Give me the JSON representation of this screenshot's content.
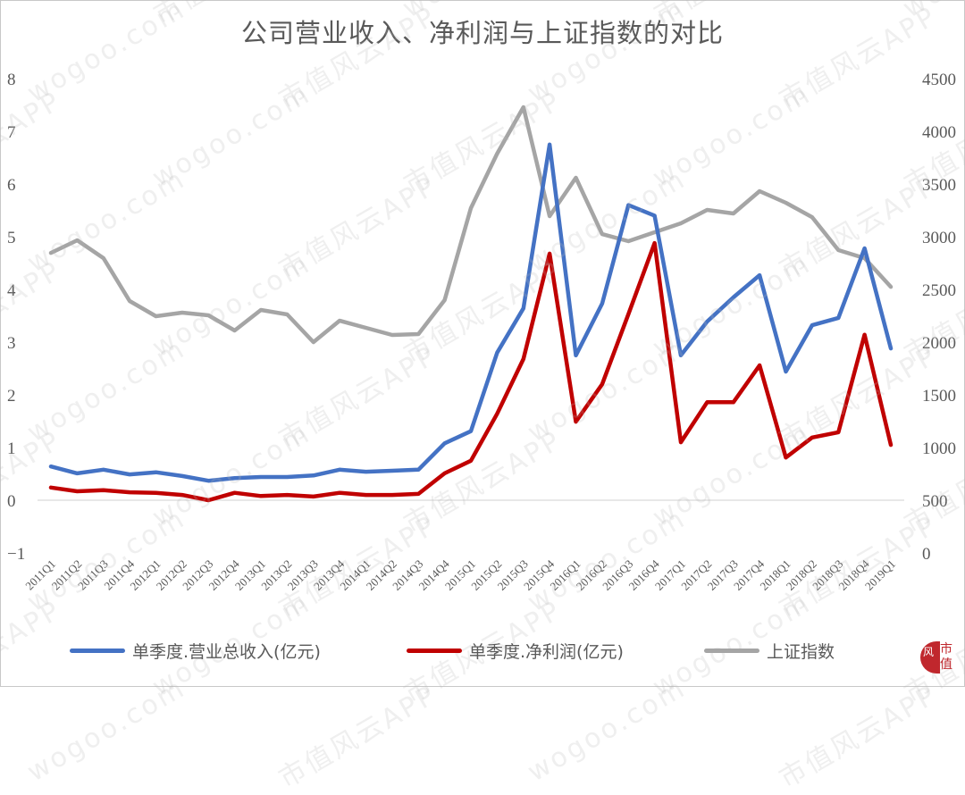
{
  "chart_data": {
    "type": "line",
    "title": "公司营业收入、净利润与上证指数的对比",
    "xlabel": "",
    "ylabel_left": "",
    "ylabel_right": "",
    "ylim_left": [
      -1,
      8
    ],
    "ylim_right": [
      0,
      4500
    ],
    "yticks_left": [
      "8",
      "7",
      "6",
      "5",
      "4",
      "3",
      "2",
      "1",
      "0",
      "-1"
    ],
    "yticks_right": [
      "4500",
      "4000",
      "3500",
      "3000",
      "2500",
      "2000",
      "1500",
      "1000",
      "500",
      "0"
    ],
    "grid": false,
    "legend_position": "bottom",
    "categories": [
      "2011Q1",
      "2011Q2",
      "2011Q3",
      "2011Q4",
      "2012Q1",
      "2012Q2",
      "2012Q3",
      "2012Q4",
      "2013Q1",
      "2013Q2",
      "2013Q3",
      "2013Q4",
      "2014Q1",
      "2014Q2",
      "2014Q3",
      "2014Q4",
      "2015Q1",
      "2015Q2",
      "2015Q3",
      "2015Q4",
      "2016Q1",
      "2016Q2",
      "2016Q3",
      "2016Q4",
      "2017Q1",
      "2017Q2",
      "2017Q3",
      "2017Q4",
      "2018Q1",
      "2018Q2",
      "2018Q3",
      "2018Q4",
      "2019Q1"
    ],
    "series": [
      {
        "name": "单季度.营业总收入(亿元)",
        "axis": "left",
        "color": "#4472c4",
        "values": [
          0.64,
          0.51,
          0.58,
          0.49,
          0.53,
          0.46,
          0.37,
          0.42,
          0.44,
          0.44,
          0.47,
          0.58,
          0.54,
          0.56,
          0.58,
          1.08,
          1.31,
          2.8,
          3.64,
          6.75,
          2.75,
          3.73,
          5.6,
          5.4,
          2.75,
          3.39,
          3.85,
          4.27,
          2.44,
          3.32,
          3.46,
          4.78,
          2.88
        ]
      },
      {
        "name": "单季度.净利润(亿元)",
        "axis": "left",
        "color": "#c00000",
        "values": [
          0.24,
          0.17,
          0.19,
          0.15,
          0.14,
          0.1,
          0.0,
          0.14,
          0.08,
          0.1,
          0.07,
          0.14,
          0.1,
          0.1,
          0.12,
          0.51,
          0.75,
          1.64,
          2.68,
          4.68,
          1.49,
          2.2,
          3.53,
          4.88,
          1.1,
          1.86,
          1.86,
          2.56,
          0.81,
          1.19,
          1.29,
          3.14,
          1.05
        ]
      },
      {
        "name": "上证指数",
        "axis": "right",
        "color": "#a5a5a5",
        "values": [
          2847,
          2966,
          2797,
          2390,
          2246,
          2280,
          2254,
          2110,
          2305,
          2263,
          2000,
          2203,
          2136,
          2068,
          2076,
          2398,
          3271,
          3788,
          4229,
          3195,
          3559,
          3025,
          2958,
          3042,
          3127,
          3254,
          3220,
          3432,
          3322,
          3186,
          2873,
          2797,
          2525
        ]
      }
    ]
  },
  "legend": {
    "items": [
      {
        "label": "单季度.营业总收入(亿元)",
        "color": "#4472c4"
      },
      {
        "label": "单季度.净利润(亿元)",
        "color": "#c00000"
      },
      {
        "label": "上证指数",
        "color": "#a5a5a5"
      }
    ]
  },
  "watermark": {
    "texts": [
      "市值风云APP",
      "wogoo.com"
    ]
  },
  "logo": {
    "text_top": "市",
    "text_bottom": "值",
    "glyph": "风云"
  }
}
